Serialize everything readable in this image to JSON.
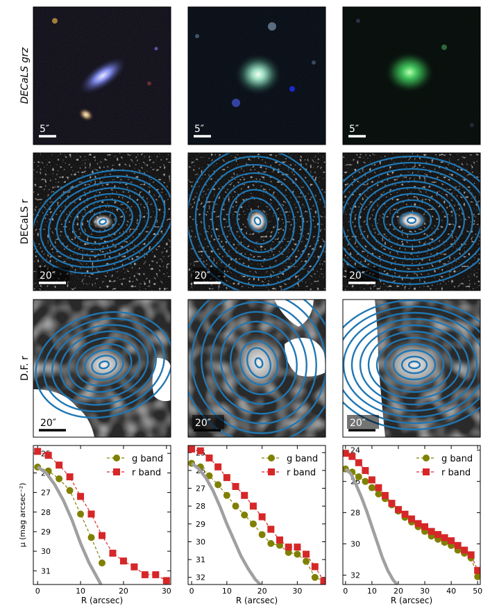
{
  "figure": {
    "row_labels": [
      "DECaLS grz",
      "DECaLS r",
      "D.F. r"
    ],
    "scale_labels": {
      "row1": [
        "5″",
        "5″",
        "5″"
      ],
      "row2": [
        "20″",
        "20″",
        "20″"
      ],
      "row3": [
        "20″",
        "20″",
        "20″"
      ]
    },
    "colors": {
      "g_band": "#808000",
      "r_band": "#d62728",
      "psf": "#a0a0a0",
      "isophote": "#1f77b4"
    }
  },
  "chart_data": [
    {
      "type": "line",
      "xlabel": "R (arcsec)",
      "ylabel": "μ (mag arcsec⁻²)",
      "xlim": [
        -1,
        31
      ],
      "ylim": [
        31.7,
        24.6
      ],
      "xticks": [
        0,
        10,
        20,
        30
      ],
      "yticks": [
        25,
        26,
        27,
        28,
        29,
        30,
        31
      ],
      "legend_position": "top-right",
      "series": [
        {
          "name": "g band",
          "marker": "circle",
          "x": [
            0,
            2.5,
            5,
            7.5,
            10,
            12.5,
            15
          ],
          "y": [
            25.7,
            25.9,
            26.3,
            26.9,
            28.1,
            29.3,
            30.6
          ]
        },
        {
          "name": "r band",
          "marker": "square",
          "x": [
            0,
            2.5,
            5,
            7.5,
            10,
            12.5,
            15,
            17.5,
            20,
            22.5,
            25,
            27.5,
            30
          ],
          "y": [
            24.9,
            25.1,
            25.6,
            26.2,
            27.2,
            28.1,
            29.2,
            30.1,
            30.5,
            30.8,
            31.2,
            31.2,
            31.5
          ]
        },
        {
          "name": "",
          "style": "psf",
          "x": [
            0,
            2,
            4,
            6,
            8,
            10,
            12,
            14,
            15
          ],
          "y": [
            25.7,
            26.0,
            26.6,
            27.4,
            28.4,
            29.6,
            30.6,
            31.4,
            31.8
          ]
        }
      ]
    },
    {
      "type": "line",
      "xlabel": "R (arcsec)",
      "ylabel": "",
      "xlim": [
        -1,
        38
      ],
      "ylim": [
        32.4,
        24.6
      ],
      "xticks": [
        0,
        10,
        20,
        30
      ],
      "yticks": [
        25,
        26,
        27,
        28,
        29,
        30,
        31,
        32
      ],
      "legend_position": "top-right",
      "series": [
        {
          "name": "g band",
          "marker": "circle",
          "x": [
            0,
            2.5,
            5,
            7.5,
            10,
            12.5,
            15,
            17.5,
            20,
            22.5,
            25,
            27.5,
            30,
            32.5,
            35,
            37.5
          ],
          "y": [
            25.6,
            25.8,
            26.3,
            26.8,
            27.4,
            28.0,
            28.5,
            29.0,
            29.6,
            30.1,
            30.2,
            30.6,
            30.7,
            31.1,
            32.0,
            32.2
          ]
        },
        {
          "name": "r band",
          "marker": "square",
          "x": [
            0,
            2.5,
            5,
            7.5,
            10,
            12.5,
            15,
            17.5,
            20,
            22.5,
            25,
            27.5,
            30,
            32.5,
            35,
            37.5
          ],
          "y": [
            24.8,
            24.9,
            25.3,
            25.8,
            26.4,
            26.9,
            27.4,
            28.0,
            28.6,
            29.3,
            29.9,
            30.3,
            30.3,
            30.7,
            31.4,
            32.2
          ]
        },
        {
          "name": "",
          "style": "psf",
          "x": [
            0,
            2,
            4,
            6,
            8,
            10,
            12,
            14,
            16,
            18,
            20
          ],
          "y": [
            25.6,
            25.9,
            26.4,
            27.1,
            28.0,
            29.0,
            29.9,
            30.8,
            31.5,
            32.1,
            32.5
          ]
        }
      ]
    },
    {
      "type": "line",
      "xlabel": "R (arcsec)",
      "ylabel": "",
      "xlim": [
        -1,
        51
      ],
      "ylim": [
        32.6,
        23.7
      ],
      "xticks": [
        0,
        10,
        20,
        30,
        40,
        50
      ],
      "yticks": [
        24,
        26,
        28,
        30,
        32
      ],
      "legend_position": "top-right",
      "series": [
        {
          "name": "g band",
          "marker": "circle",
          "x": [
            0,
            2.5,
            5,
            7.5,
            10,
            12.5,
            15,
            17.5,
            20,
            22.5,
            25,
            27.5,
            30,
            32.5,
            35,
            37.5,
            40,
            42.5,
            45,
            47.5,
            50
          ],
          "y": [
            25.2,
            25.4,
            25.7,
            26.0,
            26.4,
            26.8,
            27.1,
            27.5,
            27.9,
            28.3,
            28.6,
            28.9,
            29.2,
            29.5,
            29.7,
            29.9,
            30.1,
            30.4,
            30.6,
            30.9,
            32.1
          ]
        },
        {
          "name": "r band",
          "marker": "square",
          "x": [
            0,
            2.5,
            5,
            7.5,
            10,
            12.5,
            15,
            17.5,
            20,
            22.5,
            25,
            27.5,
            30,
            32.5,
            35,
            37.5,
            40,
            42.5,
            45,
            47.5,
            50
          ],
          "y": [
            24.2,
            24.4,
            24.8,
            25.3,
            25.9,
            26.4,
            26.9,
            27.4,
            27.8,
            28.1,
            28.4,
            28.7,
            28.9,
            29.2,
            29.4,
            29.6,
            29.8,
            30.1,
            30.4,
            30.7,
            31.7
          ]
        },
        {
          "name": "",
          "style": "psf",
          "x": [
            0,
            2,
            4,
            6,
            8,
            10,
            12,
            14,
            16,
            18,
            20
          ],
          "y": [
            25.2,
            25.5,
            26.2,
            27.0,
            27.9,
            28.9,
            29.9,
            30.9,
            31.7,
            32.3,
            32.7
          ]
        }
      ]
    }
  ]
}
